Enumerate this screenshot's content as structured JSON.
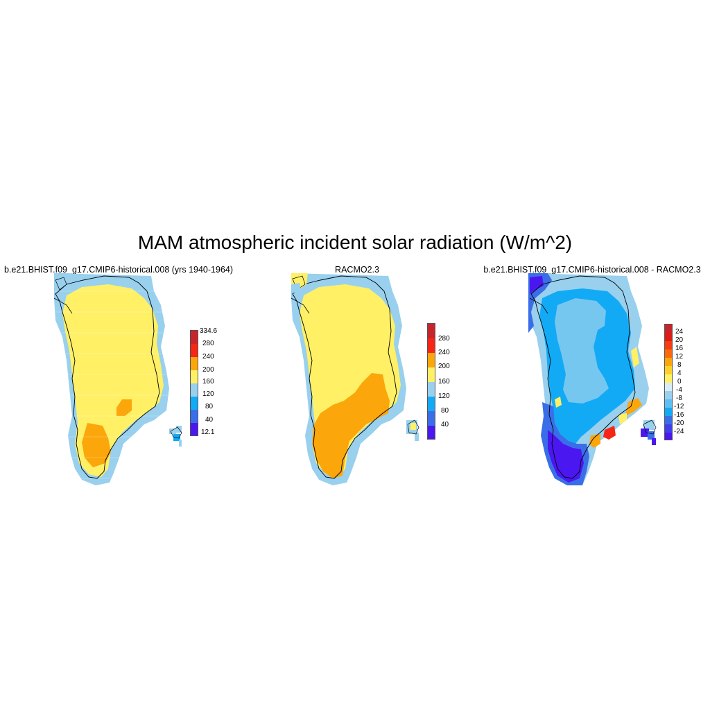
{
  "title": "MAM atmospheric incident solar radiation (W/m^2)",
  "colors": {
    "palette": [
      "#4b17f0",
      "#3a6ee8",
      "#12aaf5",
      "#98d0ee",
      "#fff066",
      "#fba60a",
      "#f72515",
      "#c8242c"
    ],
    "coastline": "#000000",
    "background": "#ffffff"
  },
  "panels": [
    {
      "title": "b.e21.BHIST.f09_g17.CMIP6-historical.008 (yrs 1940-1964)",
      "colorbar_labels": [
        "334.6",
        "280",
        "240",
        "200",
        "160",
        "120",
        "80",
        "40",
        "12.1"
      ],
      "dominant_values": "160-200 interior, 200-240 south"
    },
    {
      "title": "RACMO2.3",
      "colorbar_labels": [
        "280",
        "240",
        "200",
        "160",
        "120",
        "80",
        "40"
      ],
      "dominant_values": "160-200 north, 200-240 south"
    },
    {
      "title": "b.e21.BHIST.f09_g17.CMIP6-historical.008 - RACMO2.3",
      "colorbar_labels": [
        "24",
        "20",
        "16",
        "12",
        "8",
        "4",
        "0",
        "-4",
        "-8",
        "-12",
        "-16",
        "-20",
        "-24"
      ],
      "dominant_values": "-4 to -12 interior, below -24 south, positive on southeast coast"
    }
  ]
}
